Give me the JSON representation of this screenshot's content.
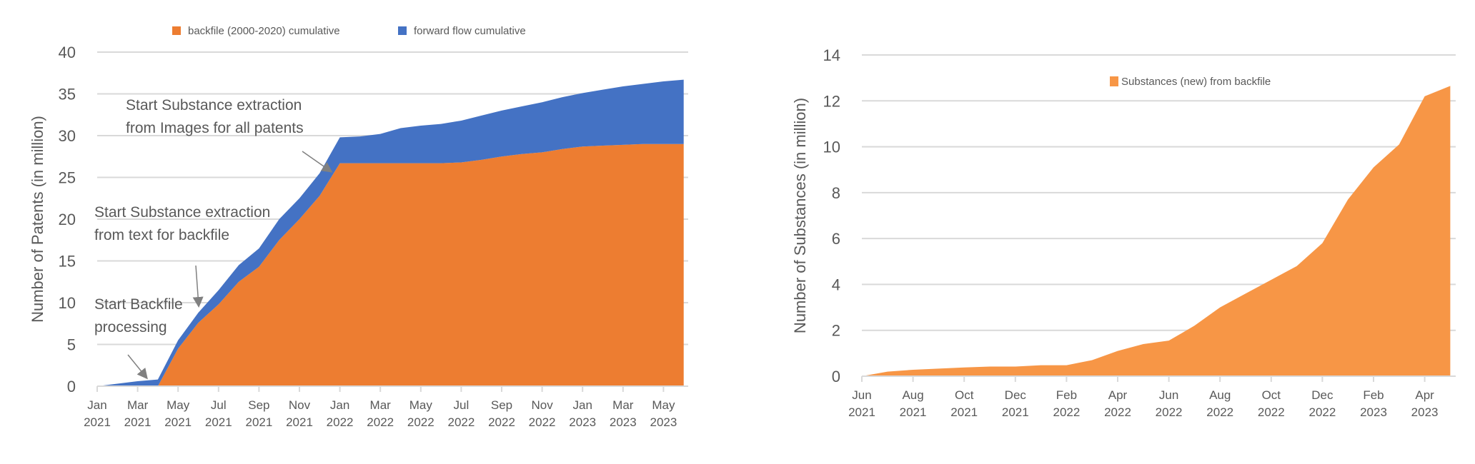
{
  "chart_data": [
    {
      "type": "area",
      "stacked": true,
      "ylabel": "Number of Patents (in million)",
      "ylim": [
        0,
        40
      ],
      "yticks": [
        0,
        5,
        10,
        15,
        20,
        25,
        30,
        35,
        40
      ],
      "grid": true,
      "legend_position": "top",
      "x": [
        "2021-01",
        "2021-02",
        "2021-03",
        "2021-04",
        "2021-05",
        "2021-06",
        "2021-07",
        "2021-08",
        "2021-09",
        "2021-10",
        "2021-11",
        "2021-12",
        "2022-01",
        "2022-02",
        "2022-03",
        "2022-04",
        "2022-05",
        "2022-06",
        "2022-07",
        "2022-08",
        "2022-09",
        "2022-10",
        "2022-11",
        "2022-12",
        "2023-01",
        "2023-02",
        "2023-03",
        "2023-04",
        "2023-05",
        "2023-06"
      ],
      "xtick_labels": [
        [
          "Jan",
          "2021"
        ],
        [
          "Mar",
          "2021"
        ],
        [
          "May",
          "2021"
        ],
        [
          "Jul",
          "2021"
        ],
        [
          "Sep",
          "2021"
        ],
        [
          "Nov",
          "2021"
        ],
        [
          "Jan",
          "2022"
        ],
        [
          "Mar",
          "2022"
        ],
        [
          "May",
          "2022"
        ],
        [
          "Jul",
          "2022"
        ],
        [
          "Sep",
          "2022"
        ],
        [
          "Nov",
          "2022"
        ],
        [
          "Jan",
          "2023"
        ],
        [
          "Mar",
          "2023"
        ],
        [
          "May",
          "2023"
        ]
      ],
      "series": [
        {
          "name": "backfile (2000-2020) cumulative",
          "color": "#ED7D31",
          "values": [
            0,
            0,
            0,
            0,
            4.5,
            7.6,
            9.8,
            12.5,
            14.3,
            17.5,
            20,
            22.8,
            26.7,
            26.7,
            26.7,
            26.7,
            26.7,
            26.7,
            26.8,
            27.1,
            27.5,
            27.8,
            28.0,
            28.4,
            28.7,
            28.8,
            28.9,
            29.0,
            29.0,
            29.0
          ]
        },
        {
          "name": "forward flow cumulative",
          "color": "#4472C4",
          "values": [
            0,
            0.3,
            0.6,
            0.8,
            1.0,
            1.2,
            1.7,
            2.0,
            2.2,
            2.5,
            2.5,
            2.7,
            3.1,
            3.2,
            3.5,
            4.2,
            4.5,
            4.7,
            5.0,
            5.3,
            5.5,
            5.7,
            6.0,
            6.2,
            6.4,
            6.7,
            7.0,
            7.2,
            7.5,
            7.7
          ]
        }
      ],
      "annotations": [
        {
          "lines": [
            "Start Substance extraction",
            "from Images for all patents"
          ]
        },
        {
          "lines": [
            "Start Substance extraction",
            "from text for backfile"
          ]
        },
        {
          "lines": [
            "Start Backfile",
            "processing"
          ]
        }
      ]
    },
    {
      "type": "area",
      "ylabel": "Number of Substances (in million)",
      "ylim": [
        0,
        14
      ],
      "yticks": [
        0,
        2,
        4,
        6,
        8,
        10,
        12,
        14
      ],
      "grid": true,
      "legend_position": "top-right",
      "x": [
        "2021-06",
        "2021-07",
        "2021-08",
        "2021-09",
        "2021-10",
        "2021-11",
        "2021-12",
        "2022-01",
        "2022-02",
        "2022-03",
        "2022-04",
        "2022-05",
        "2022-06",
        "2022-07",
        "2022-08",
        "2022-09",
        "2022-10",
        "2022-11",
        "2022-12",
        "2023-01",
        "2023-02",
        "2023-03",
        "2023-04",
        "2023-05"
      ],
      "xtick_labels": [
        [
          "Jun",
          "2021"
        ],
        [
          "Aug",
          "2021"
        ],
        [
          "Oct",
          "2021"
        ],
        [
          "Dec",
          "2021"
        ],
        [
          "Feb",
          "2022"
        ],
        [
          "Apr",
          "2022"
        ],
        [
          "Jun",
          "2022"
        ],
        [
          "Aug",
          "2022"
        ],
        [
          "Oct",
          "2022"
        ],
        [
          "Dec",
          "2022"
        ],
        [
          "Feb",
          "2023"
        ],
        [
          "Apr",
          "2023"
        ]
      ],
      "series": [
        {
          "name": "Substances (new) from backfile",
          "color": "#F79646",
          "values": [
            0,
            0.2,
            0.28,
            0.33,
            0.38,
            0.42,
            0.42,
            0.48,
            0.48,
            0.7,
            1.1,
            1.4,
            1.55,
            2.2,
            3.0,
            3.6,
            4.2,
            4.8,
            5.8,
            7.7,
            9.1,
            10.1,
            12.2,
            12.65
          ]
        }
      ]
    }
  ]
}
